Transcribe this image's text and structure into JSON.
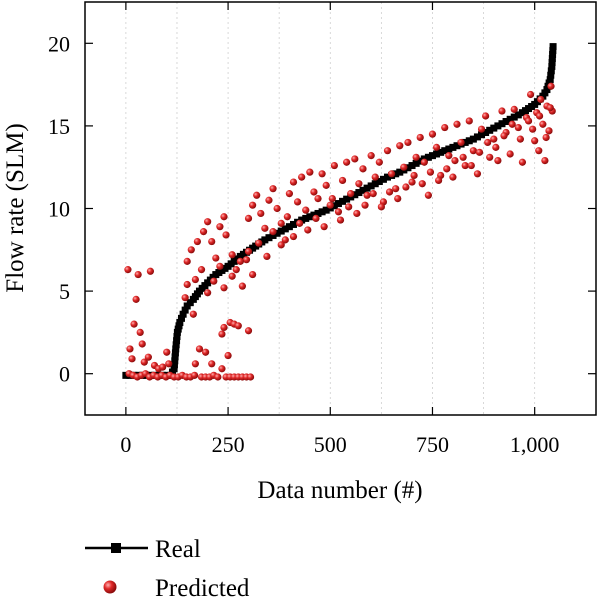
{
  "chart_data": {
    "type": "scatter",
    "xlabel": "Data number (#)",
    "ylabel": "Flow rate (SLM)",
    "xlim": [
      -100,
      1150
    ],
    "ylim": [
      -2.5,
      22.5
    ],
    "x_ticks": [
      0,
      250,
      500,
      750,
      1000
    ],
    "x_tick_labels": [
      "0",
      "250",
      "500",
      "750",
      "1,000"
    ],
    "y_ticks": [
      0,
      5,
      10,
      15,
      20
    ],
    "y_tick_labels": [
      "0",
      "5",
      "10",
      "15",
      "20"
    ],
    "grid": "vertical dotted",
    "legend_position": "bottom-left outside",
    "series": [
      {
        "name": "Real",
        "style": "line-with-square-markers",
        "color": "#000000",
        "points": [
          [
            0,
            -0.1
          ],
          [
            30,
            -0.1
          ],
          [
            60,
            -0.1
          ],
          [
            90,
            -0.1
          ],
          [
            110,
            -0.1
          ],
          [
            118,
            0.3
          ],
          [
            122,
            1.5
          ],
          [
            126,
            2.5
          ],
          [
            132,
            3.1
          ],
          [
            140,
            3.6
          ],
          [
            150,
            4.1
          ],
          [
            165,
            4.5
          ],
          [
            180,
            5.0
          ],
          [
            200,
            5.5
          ],
          [
            220,
            6.0
          ],
          [
            250,
            6.5
          ],
          [
            280,
            7.1
          ],
          [
            310,
            7.6
          ],
          [
            340,
            8.1
          ],
          [
            370,
            8.5
          ],
          [
            400,
            8.9
          ],
          [
            430,
            9.3
          ],
          [
            460,
            9.6
          ],
          [
            490,
            9.9
          ],
          [
            520,
            10.3
          ],
          [
            550,
            10.7
          ],
          [
            580,
            11.1
          ],
          [
            610,
            11.5
          ],
          [
            640,
            11.9
          ],
          [
            670,
            12.2
          ],
          [
            700,
            12.6
          ],
          [
            730,
            13.0
          ],
          [
            760,
            13.3
          ],
          [
            790,
            13.6
          ],
          [
            820,
            13.9
          ],
          [
            850,
            14.2
          ],
          [
            880,
            14.6
          ],
          [
            910,
            15.0
          ],
          [
            940,
            15.4
          ],
          [
            970,
            15.8
          ],
          [
            1000,
            16.3
          ],
          [
            1020,
            16.8
          ],
          [
            1030,
            17.2
          ],
          [
            1038,
            17.8
          ],
          [
            1042,
            18.6
          ],
          [
            1045,
            19.8
          ]
        ]
      },
      {
        "name": "Predicted",
        "style": "red-sphere-markers",
        "color": "#d62020",
        "points": [
          [
            5,
            6.3
          ],
          [
            25,
            4.5
          ],
          [
            30,
            6.0
          ],
          [
            60,
            6.2
          ],
          [
            20,
            3.0
          ],
          [
            35,
            2.5
          ],
          [
            40,
            1.8
          ],
          [
            15,
            0.9
          ],
          [
            10,
            1.5
          ],
          [
            45,
            0.7
          ],
          [
            55,
            1.0
          ],
          [
            70,
            0.5
          ],
          [
            80,
            0.3
          ],
          [
            90,
            0.4
          ],
          [
            100,
            1.3
          ],
          [
            105,
            0.6
          ],
          [
            8,
            0.0
          ],
          [
            18,
            -0.1
          ],
          [
            28,
            -0.2
          ],
          [
            38,
            -0.1
          ],
          [
            48,
            0.0
          ],
          [
            58,
            -0.2
          ],
          [
            68,
            -0.1
          ],
          [
            78,
            -0.2
          ],
          [
            88,
            -0.1
          ],
          [
            98,
            -0.2
          ],
          [
            108,
            -0.1
          ],
          [
            118,
            -0.2
          ],
          [
            128,
            -0.2
          ],
          [
            138,
            -0.1
          ],
          [
            148,
            -0.2
          ],
          [
            158,
            -0.2
          ],
          [
            168,
            -0.1
          ],
          [
            185,
            -0.2
          ],
          [
            195,
            -0.2
          ],
          [
            205,
            -0.2
          ],
          [
            215,
            -0.1
          ],
          [
            225,
            -0.2
          ],
          [
            245,
            -0.2
          ],
          [
            255,
            -0.2
          ],
          [
            265,
            -0.2
          ],
          [
            275,
            -0.2
          ],
          [
            285,
            -0.2
          ],
          [
            295,
            -0.2
          ],
          [
            305,
            -0.2
          ],
          [
            240,
            2.8
          ],
          [
            235,
            2.4
          ],
          [
            255,
            3.1
          ],
          [
            265,
            3.0
          ],
          [
            275,
            2.9
          ],
          [
            300,
            2.6
          ],
          [
            250,
            1.1
          ],
          [
            235,
            0.3
          ],
          [
            210,
            0.6
          ],
          [
            195,
            1.3
          ],
          [
            180,
            1.5
          ],
          [
            170,
            0.6
          ],
          [
            150,
            6.8
          ],
          [
            160,
            7.5
          ],
          [
            175,
            8.0
          ],
          [
            190,
            8.6
          ],
          [
            200,
            9.2
          ],
          [
            210,
            8.0
          ],
          [
            220,
            7.0
          ],
          [
            230,
            8.9
          ],
          [
            240,
            9.5
          ],
          [
            245,
            8.4
          ],
          [
            260,
            7.2
          ],
          [
            270,
            6.3
          ],
          [
            285,
            5.3
          ],
          [
            295,
            6.9
          ],
          [
            300,
            9.4
          ],
          [
            310,
            10.2
          ],
          [
            320,
            10.8
          ],
          [
            330,
            9.7
          ],
          [
            340,
            8.8
          ],
          [
            350,
            10.5
          ],
          [
            360,
            11.2
          ],
          [
            370,
            10.0
          ],
          [
            380,
            9.1
          ],
          [
            390,
            8.1
          ],
          [
            400,
            10.9
          ],
          [
            410,
            11.6
          ],
          [
            420,
            10.4
          ],
          [
            430,
            11.9
          ],
          [
            440,
            9.9
          ],
          [
            450,
            12.2
          ],
          [
            460,
            11.0
          ],
          [
            470,
            10.6
          ],
          [
            480,
            12.1
          ],
          [
            490,
            11.4
          ],
          [
            500,
            10.2
          ],
          [
            510,
            12.6
          ],
          [
            520,
            9.8
          ],
          [
            530,
            11.7
          ],
          [
            540,
            12.8
          ],
          [
            550,
            10.9
          ],
          [
            560,
            13.0
          ],
          [
            570,
            11.5
          ],
          [
            580,
            12.4
          ],
          [
            590,
            10.8
          ],
          [
            600,
            13.2
          ],
          [
            610,
            11.9
          ],
          [
            620,
            12.8
          ],
          [
            630,
            10.4
          ],
          [
            640,
            13.5
          ],
          [
            650,
            12.1
          ],
          [
            660,
            11.2
          ],
          [
            670,
            13.8
          ],
          [
            680,
            12.5
          ],
          [
            690,
            14.0
          ],
          [
            700,
            11.6
          ],
          [
            710,
            13.1
          ],
          [
            720,
            14.3
          ],
          [
            730,
            12.8
          ],
          [
            740,
            10.8
          ],
          [
            750,
            14.5
          ],
          [
            760,
            13.7
          ],
          [
            770,
            12.0
          ],
          [
            780,
            14.9
          ],
          [
            790,
            13.2
          ],
          [
            800,
            11.9
          ],
          [
            810,
            15.1
          ],
          [
            820,
            14.0
          ],
          [
            830,
            12.6
          ],
          [
            840,
            15.3
          ],
          [
            850,
            13.5
          ],
          [
            860,
            12.1
          ],
          [
            870,
            14.8
          ],
          [
            880,
            15.6
          ],
          [
            890,
            13.1
          ],
          [
            900,
            14.2
          ],
          [
            910,
            12.9
          ],
          [
            920,
            15.9
          ],
          [
            930,
            14.6
          ],
          [
            940,
            13.3
          ],
          [
            950,
            16.0
          ],
          [
            960,
            14.9
          ],
          [
            970,
            12.8
          ],
          [
            980,
            15.5
          ],
          [
            990,
            16.9
          ],
          [
            1000,
            14.1
          ],
          [
            1005,
            15.8
          ],
          [
            1010,
            13.5
          ],
          [
            1015,
            16.6
          ],
          [
            1020,
            15.1
          ],
          [
            1025,
            12.9
          ],
          [
            1030,
            16.2
          ],
          [
            1035,
            14.7
          ],
          [
            1040,
            17.4
          ],
          [
            1043,
            15.9
          ],
          [
            145,
            4.6
          ],
          [
            150,
            5.4
          ],
          [
            165,
            3.6
          ],
          [
            170,
            5.7
          ],
          [
            185,
            6.3
          ],
          [
            200,
            4.9
          ],
          [
            215,
            5.6
          ],
          [
            230,
            6.5
          ],
          [
            240,
            5.2
          ],
          [
            260,
            5.9
          ],
          [
            280,
            6.8
          ],
          [
            300,
            7.4
          ],
          [
            310,
            6.0
          ],
          [
            325,
            7.9
          ],
          [
            345,
            7.1
          ],
          [
            360,
            8.6
          ],
          [
            380,
            7.8
          ],
          [
            395,
            9.5
          ],
          [
            410,
            8.3
          ],
          [
            425,
            9.1
          ],
          [
            445,
            8.7
          ],
          [
            465,
            9.4
          ],
          [
            485,
            8.9
          ],
          [
            505,
            10.6
          ],
          [
            525,
            9.3
          ],
          [
            545,
            10.1
          ],
          [
            565,
            9.7
          ],
          [
            585,
            10.2
          ],
          [
            605,
            10.9
          ],
          [
            625,
            10.1
          ],
          [
            645,
            11.0
          ],
          [
            665,
            10.6
          ],
          [
            685,
            11.3
          ],
          [
            705,
            12.0
          ],
          [
            725,
            11.5
          ],
          [
            745,
            12.2
          ],
          [
            765,
            11.7
          ],
          [
            785,
            12.4
          ],
          [
            805,
            12.9
          ],
          [
            825,
            13.1
          ],
          [
            845,
            12.6
          ],
          [
            865,
            13.4
          ],
          [
            885,
            14.0
          ],
          [
            905,
            13.7
          ],
          [
            925,
            14.4
          ],
          [
            945,
            15.1
          ],
          [
            965,
            14.2
          ],
          [
            985,
            15.3
          ],
          [
            995,
            14.8
          ],
          [
            1012,
            15.6
          ],
          [
            1028,
            14.3
          ],
          [
            1038,
            16.1
          ]
        ]
      }
    ]
  }
}
